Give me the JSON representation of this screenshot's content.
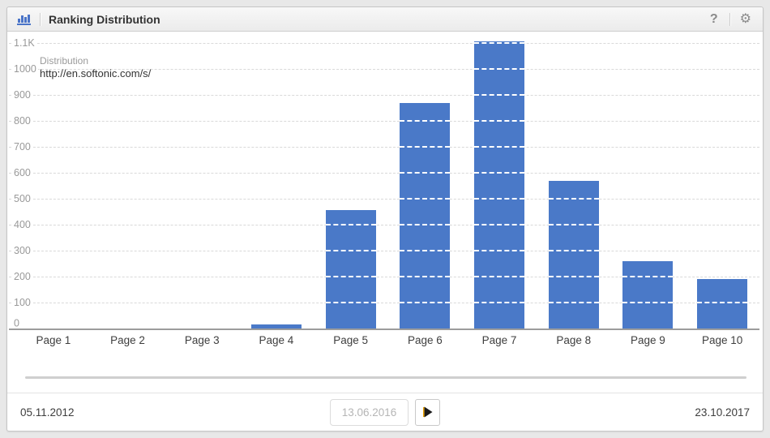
{
  "header": {
    "title": "Ranking Distribution",
    "help_label": "?",
    "gear_icon": "gear-icon",
    "chart_icon": "bar-chart-icon"
  },
  "chart_data": {
    "type": "bar",
    "title": "Ranking Distribution",
    "series_name": "Distribution",
    "url": "http://en.softonic.com/s/",
    "categories": [
      "Page 1",
      "Page 2",
      "Page 3",
      "Page 4",
      "Page 5",
      "Page 6",
      "Page 7",
      "Page 8",
      "Page 9",
      "Page 10"
    ],
    "values": [
      0,
      0,
      0,
      15,
      455,
      870,
      1105,
      570,
      260,
      190
    ],
    "ylim": [
      0,
      1100
    ],
    "ytick_step": 100,
    "ytick_labels": [
      "0",
      "100",
      "200",
      "300",
      "400",
      "500",
      "600",
      "700",
      "800",
      "900",
      "1000",
      "1.1K"
    ],
    "xlabel": "",
    "ylabel": "",
    "grid": true,
    "legend_position": "top-left",
    "bar_color": "#4a79c8",
    "grid_color": "#d9d9d9",
    "grid_over_bar_color": "#ffffff"
  },
  "timeline": {
    "start_date": "05.11.2012",
    "current_date": "13.06.2016",
    "end_date": "23.10.2017"
  }
}
